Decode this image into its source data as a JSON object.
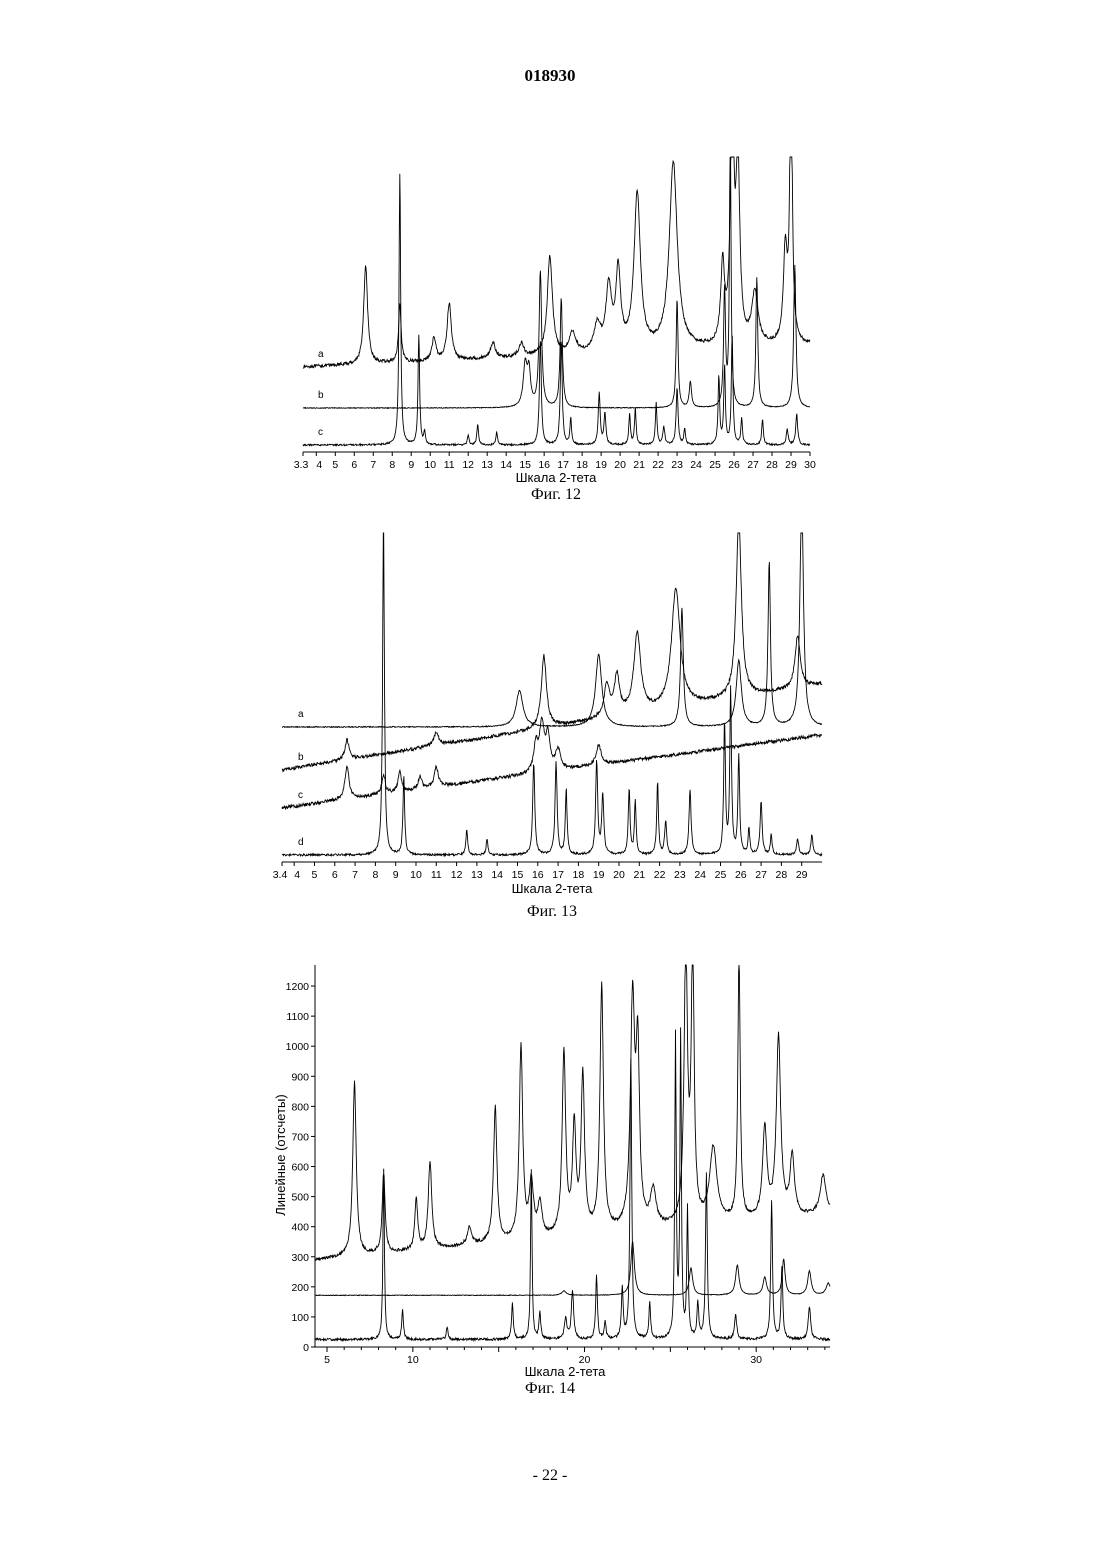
{
  "page": {
    "doc_number": "018930",
    "page_number": "- 22 -"
  },
  "chart_data": [
    {
      "type": "line",
      "caption": "Фиг. 12",
      "xlabel": "Шкала 2-тета",
      "ylabel": "",
      "xlim": [
        3.3,
        30
      ],
      "x_ticks": [
        "3.3",
        "4",
        "5",
        "6",
        "7",
        "8",
        "9",
        "10",
        "11",
        "12",
        "13",
        "14",
        "15",
        "16",
        "17",
        "18",
        "19",
        "20",
        "21",
        "22",
        "23",
        "24",
        "25",
        "26",
        "27",
        "28",
        "29",
        "30"
      ],
      "grid": false,
      "series": [
        {
          "name": "a",
          "baseline": 0.24,
          "noise": 0.012,
          "drift": 0.22,
          "peaks": [
            [
              6.6,
              0.38,
              0.12
            ],
            [
              8.4,
              0.22,
              0.08
            ],
            [
              10.2,
              0.09,
              0.12
            ],
            [
              11.0,
              0.22,
              0.13
            ],
            [
              13.3,
              0.06,
              0.15
            ],
            [
              14.8,
              0.05,
              0.15
            ],
            [
              16.3,
              0.38,
              0.16
            ],
            [
              17.5,
              0.08,
              0.2
            ],
            [
              18.8,
              0.1,
              0.2
            ],
            [
              19.4,
              0.24,
              0.18
            ],
            [
              19.9,
              0.3,
              0.15
            ],
            [
              20.9,
              0.6,
              0.2
            ],
            [
              22.8,
              0.72,
              0.25
            ],
            [
              25.4,
              0.3,
              0.12
            ],
            [
              25.9,
              1.05,
              0.1
            ],
            [
              26.2,
              0.7,
              0.12
            ],
            [
              27.1,
              0.2,
              0.2
            ],
            [
              28.7,
              0.35,
              0.12
            ],
            [
              29.0,
              1.05,
              0.08
            ]
          ]
        },
        {
          "name": "b",
          "baseline": 0.12,
          "noise": 0.003,
          "drift": 0,
          "peaks": [
            [
              15.0,
              0.16,
              0.12
            ],
            [
              15.2,
              0.13,
              0.1
            ],
            [
              15.8,
              0.52,
              0.08
            ],
            [
              16.9,
              0.42,
              0.07
            ],
            [
              23.0,
              0.42,
              0.06
            ],
            [
              23.7,
              0.1,
              0.07
            ],
            [
              25.5,
              0.45,
              0.06
            ],
            [
              25.8,
              1.05,
              0.05
            ],
            [
              27.2,
              0.5,
              0.06
            ],
            [
              29.2,
              0.55,
              0.07
            ]
          ]
        },
        {
          "name": "c",
          "baseline": 0.0,
          "noise": 0.006,
          "drift": 0,
          "peaks": [
            [
              8.4,
              1.05,
              0.05
            ],
            [
              9.4,
              0.42,
              0.05
            ],
            [
              9.7,
              0.05,
              0.05
            ],
            [
              12.0,
              0.04,
              0.05
            ],
            [
              12.5,
              0.08,
              0.05
            ],
            [
              13.5,
              0.05,
              0.05
            ],
            [
              15.8,
              0.4,
              0.06
            ],
            [
              16.9,
              0.4,
              0.06
            ],
            [
              17.4,
              0.1,
              0.05
            ],
            [
              18.9,
              0.2,
              0.06
            ],
            [
              19.2,
              0.12,
              0.06
            ],
            [
              20.5,
              0.12,
              0.05
            ],
            [
              20.8,
              0.14,
              0.05
            ],
            [
              21.9,
              0.16,
              0.05
            ],
            [
              22.3,
              0.07,
              0.06
            ],
            [
              23.0,
              0.22,
              0.06
            ],
            [
              23.4,
              0.06,
              0.05
            ],
            [
              25.2,
              0.26,
              0.05
            ],
            [
              25.5,
              0.3,
              0.05
            ],
            [
              25.9,
              0.42,
              0.05
            ],
            [
              26.4,
              0.1,
              0.05
            ],
            [
              27.5,
              0.1,
              0.05
            ],
            [
              28.8,
              0.06,
              0.06
            ],
            [
              29.3,
              0.12,
              0.06
            ]
          ]
        }
      ]
    },
    {
      "type": "line",
      "caption": "Фиг. 13",
      "xlabel": "Шкала 2-тета",
      "ylabel": "",
      "xlim": [
        3.4,
        30
      ],
      "x_ticks": [
        "3.4",
        "4",
        "5",
        "6",
        "7",
        "8",
        "9",
        "10",
        "11",
        "12",
        "13",
        "14",
        "15",
        "16",
        "17",
        "18",
        "19",
        "20",
        "21",
        "22",
        "23",
        "24",
        "25",
        "26",
        "27",
        "28",
        "29"
      ],
      "grid": false,
      "series": [
        {
          "name": "a",
          "baseline": 0.39,
          "noise": 0.003,
          "drift": 0,
          "peaks": [
            [
              15.1,
              0.11,
              0.2
            ],
            [
              19.0,
              0.22,
              0.18
            ],
            [
              23.1,
              0.36,
              0.08
            ],
            [
              25.9,
              0.2,
              0.15
            ],
            [
              27.4,
              0.5,
              0.07
            ],
            [
              29.0,
              0.72,
              0.1
            ]
          ]
        },
        {
          "name": "b",
          "baseline": 0.28,
          "noise": 0.01,
          "drift": 0.14,
          "peaks": [
            [
              6.6,
              0.06,
              0.12
            ],
            [
              11.0,
              0.04,
              0.15
            ],
            [
              16.3,
              0.22,
              0.15
            ],
            [
              19.4,
              0.1,
              0.15
            ],
            [
              19.9,
              0.12,
              0.15
            ],
            [
              20.9,
              0.24,
              0.2
            ],
            [
              22.8,
              0.36,
              0.25
            ],
            [
              25.9,
              0.55,
              0.15
            ],
            [
              28.8,
              0.16,
              0.15
            ]
          ]
        },
        {
          "name": "c",
          "baseline": 0.16,
          "noise": 0.01,
          "drift": 0.12,
          "peaks": [
            [
              6.6,
              0.1,
              0.12
            ],
            [
              8.4,
              0.06,
              0.1
            ],
            [
              9.2,
              0.06,
              0.1
            ],
            [
              10.2,
              0.04,
              0.1
            ],
            [
              11.0,
              0.06,
              0.12
            ],
            [
              15.9,
              0.08,
              0.12
            ],
            [
              16.2,
              0.14,
              0.15
            ],
            [
              16.5,
              0.1,
              0.12
            ],
            [
              17.0,
              0.06,
              0.15
            ],
            [
              19.0,
              0.06,
              0.15
            ]
          ]
        },
        {
          "name": "d",
          "baseline": 0.0,
          "noise": 0.006,
          "drift": 0,
          "peaks": [
            [
              8.4,
              1.05,
              0.05
            ],
            [
              9.4,
              0.24,
              0.05
            ],
            [
              12.5,
              0.08,
              0.05
            ],
            [
              13.5,
              0.05,
              0.05
            ],
            [
              15.8,
              0.28,
              0.06
            ],
            [
              16.9,
              0.28,
              0.06
            ],
            [
              17.4,
              0.2,
              0.05
            ],
            [
              18.9,
              0.28,
              0.06
            ],
            [
              19.2,
              0.18,
              0.06
            ],
            [
              20.5,
              0.2,
              0.05
            ],
            [
              20.8,
              0.16,
              0.05
            ],
            [
              21.9,
              0.22,
              0.05
            ],
            [
              22.3,
              0.1,
              0.06
            ],
            [
              23.5,
              0.2,
              0.06
            ],
            [
              25.2,
              0.4,
              0.05
            ],
            [
              25.5,
              0.5,
              0.05
            ],
            [
              25.9,
              0.3,
              0.05
            ],
            [
              26.4,
              0.08,
              0.05
            ],
            [
              27.0,
              0.16,
              0.06
            ],
            [
              27.5,
              0.06,
              0.05
            ],
            [
              28.8,
              0.05,
              0.06
            ],
            [
              29.5,
              0.06,
              0.06
            ]
          ]
        }
      ]
    },
    {
      "type": "line",
      "caption": "Фиг. 14",
      "xlabel": "Шкала 2-тета",
      "ylabel": "Линейные (отсчеты)",
      "xlim": [
        4.3,
        34.3
      ],
      "ylim": [
        0,
        1270
      ],
      "x_ticks": [
        "5",
        "10",
        "20",
        "30"
      ],
      "y_ticks": [
        "0",
        "100",
        "200",
        "300",
        "400",
        "500",
        "600",
        "700",
        "800",
        "900",
        "1000",
        "1100",
        "1200"
      ],
      "grid": false,
      "series": [
        {
          "name": "",
          "baseline": 290,
          "noise": 10,
          "drift": 150,
          "peaks": [
            [
              6.6,
              580,
              0.12
            ],
            [
              8.3,
              265,
              0.1
            ],
            [
              10.2,
              170,
              0.1
            ],
            [
              11.0,
              290,
              0.12
            ],
            [
              13.3,
              60,
              0.15
            ],
            [
              14.8,
              450,
              0.12
            ],
            [
              16.3,
              640,
              0.12
            ],
            [
              16.9,
              180,
              0.15
            ],
            [
              17.4,
              110,
              0.15
            ],
            [
              18.8,
              610,
              0.12
            ],
            [
              19.4,
              350,
              0.12
            ],
            [
              19.9,
              520,
              0.12
            ],
            [
              21.0,
              820,
              0.12
            ],
            [
              22.8,
              750,
              0.15
            ],
            [
              23.1,
              550,
              0.12
            ],
            [
              24.0,
              120,
              0.2
            ],
            [
              25.9,
              900,
              0.12
            ],
            [
              26.3,
              900,
              0.1
            ],
            [
              27.5,
              250,
              0.25
            ],
            [
              29.0,
              900,
              0.08
            ],
            [
              30.5,
              300,
              0.15
            ],
            [
              31.3,
              600,
              0.15
            ],
            [
              32.1,
              200,
              0.15
            ],
            [
              33.9,
              130,
              0.2
            ]
          ]
        },
        {
          "name": "",
          "baseline": 172,
          "noise": 2,
          "drift": 0,
          "peaks": [
            [
              18.8,
              15,
              0.15
            ],
            [
              22.8,
              180,
              0.12
            ],
            [
              26.2,
              90,
              0.12
            ],
            [
              28.9,
              100,
              0.12
            ],
            [
              30.5,
              60,
              0.12
            ],
            [
              31.6,
              120,
              0.1
            ],
            [
              33.1,
              80,
              0.12
            ],
            [
              34.2,
              40,
              0.15
            ]
          ]
        },
        {
          "name": "",
          "baseline": 25,
          "noise": 8,
          "drift": 0,
          "peaks": [
            [
              8.3,
              570,
              0.05
            ],
            [
              9.4,
              100,
              0.06
            ],
            [
              12.0,
              40,
              0.06
            ],
            [
              15.8,
              120,
              0.06
            ],
            [
              16.9,
              560,
              0.05
            ],
            [
              17.4,
              90,
              0.06
            ],
            [
              18.9,
              70,
              0.08
            ],
            [
              19.3,
              160,
              0.08
            ],
            [
              20.7,
              210,
              0.06
            ],
            [
              21.2,
              60,
              0.06
            ],
            [
              22.2,
              170,
              0.06
            ],
            [
              22.7,
              930,
              0.06
            ],
            [
              23.8,
              120,
              0.06
            ],
            [
              25.3,
              1000,
              0.05
            ],
            [
              25.6,
              1000,
              0.05
            ],
            [
              26.0,
              430,
              0.05
            ],
            [
              26.6,
              120,
              0.06
            ],
            [
              27.1,
              550,
              0.06
            ],
            [
              28.8,
              80,
              0.08
            ],
            [
              30.9,
              460,
              0.06
            ],
            [
              31.5,
              240,
              0.06
            ],
            [
              33.1,
              110,
              0.08
            ]
          ]
        }
      ]
    }
  ]
}
